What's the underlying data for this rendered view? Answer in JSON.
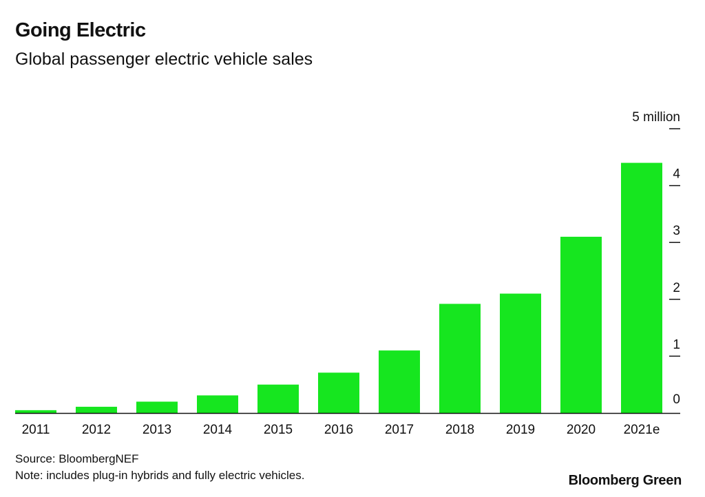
{
  "title": "Going Electric",
  "subtitle": "Global passenger electric vehicle sales",
  "source": "Source: BloombergNEF",
  "note": "Note: includes plug-in hybrids and fully electric vehicles.",
  "brand": "Bloomberg Green",
  "colors": {
    "bar": "#16e61f",
    "axis": "#111111"
  },
  "chart_data": {
    "type": "bar",
    "title": "Going Electric",
    "subtitle": "Global passenger electric vehicle sales",
    "categories": [
      "2011",
      "2012",
      "2013",
      "2014",
      "2015",
      "2016",
      "2017",
      "2018",
      "2019",
      "2020",
      "2021e"
    ],
    "values": [
      0.05,
      0.11,
      0.2,
      0.31,
      0.5,
      0.71,
      1.1,
      1.92,
      2.1,
      3.1,
      4.4
    ],
    "ylim": [
      0,
      5
    ],
    "yticks": [
      0,
      1,
      2,
      3,
      4,
      5
    ],
    "ytick_labels": [
      "0",
      "1",
      "2",
      "3",
      "4",
      "5 million"
    ],
    "y_axis_position": "right",
    "grid": false
  }
}
